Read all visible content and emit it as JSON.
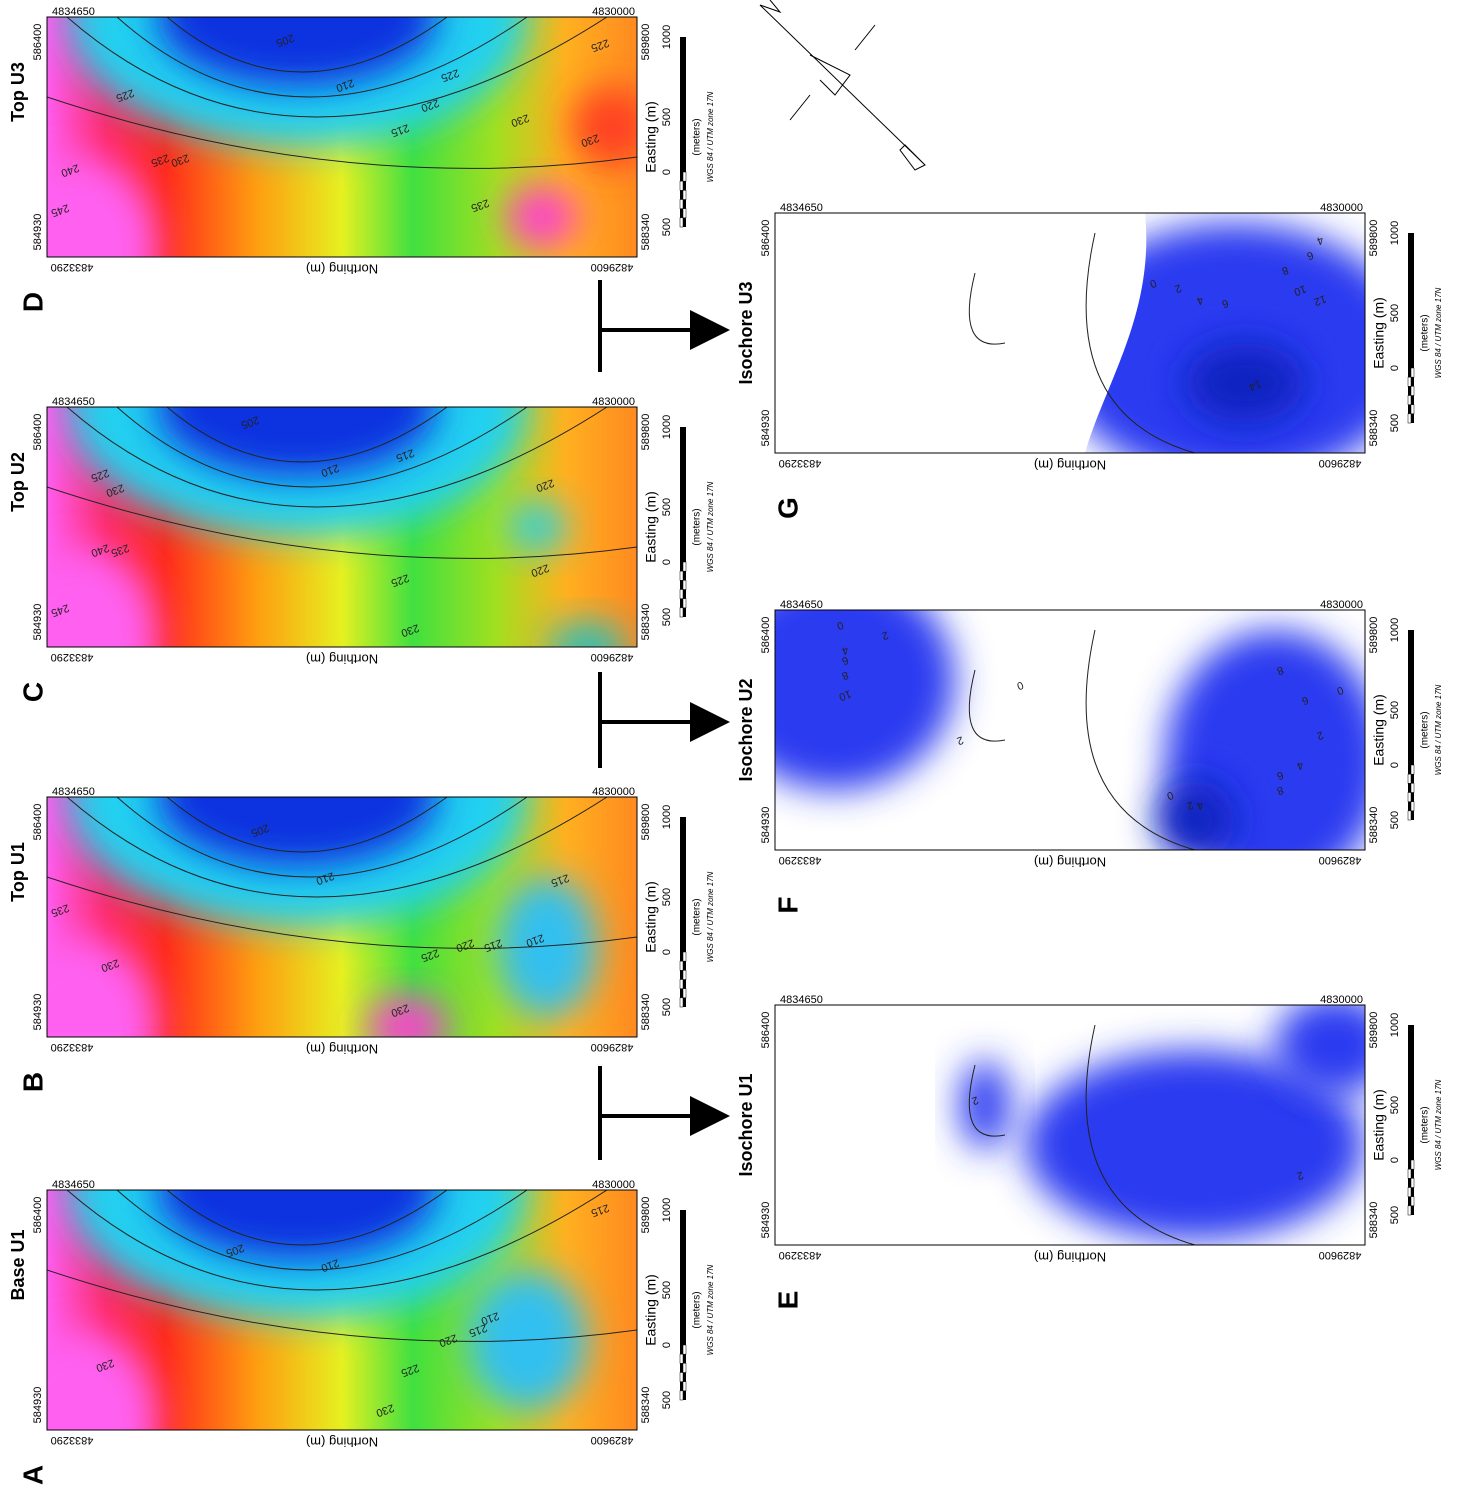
{
  "panels": [
    {
      "letter": "A",
      "title": "Base U1",
      "corner_labels": {
        "top_left": "4834650",
        "top_right": "4830000",
        "left_top": "586400",
        "left_bottom": "584930",
        "bottom_left": "4833290",
        "bottom_right": "4829600",
        "right_top": "589800",
        "right_bottom": "588340"
      },
      "axis_label_bottom": "Northing (m)",
      "scale": {
        "ticks": [
          "1000",
          "500",
          "0",
          "500"
        ],
        "unit": "(meters)",
        "axis_label": "Easting (m)",
        "projection": "WGS 84 / UTM zone 17N"
      },
      "contour_labels": [
        220,
        215,
        210,
        225,
        230,
        230,
        205,
        210,
        215
      ]
    },
    {
      "letter": "B",
      "title": "Top U1",
      "corner_labels": {
        "top_left": "4834650",
        "top_right": "4830000",
        "left_top": "586400",
        "left_bottom": "584930",
        "bottom_left": "4833290",
        "bottom_right": "4829600",
        "right_top": "589800",
        "right_bottom": "588340"
      },
      "axis_label_bottom": "Northing (m)",
      "scale": {
        "ticks": [
          "1000",
          "500",
          "0",
          "500"
        ],
        "unit": "(meters)",
        "axis_label": "Easting (m)",
        "projection": "WGS 84 / UTM zone 17N"
      },
      "contour_labels": [
        205,
        210,
        215,
        210,
        220,
        215,
        225,
        230,
        230,
        235
      ]
    },
    {
      "letter": "C",
      "title": "Top U2",
      "corner_labels": {
        "top_left": "4834650",
        "top_right": "4830000",
        "left_top": "586400",
        "left_bottom": "584930",
        "bottom_left": "4833290",
        "bottom_right": "4829600",
        "right_top": "589800",
        "right_bottom": "588340"
      },
      "axis_label_bottom": "Northing (m)",
      "scale": {
        "ticks": [
          "1000",
          "500",
          "0",
          "500"
        ],
        "unit": "(meters)",
        "axis_label": "Easting (m)",
        "projection": "WGS 84 / UTM zone 17N"
      },
      "contour_labels": [
        205,
        210,
        215,
        220,
        225,
        230,
        240,
        235,
        245,
        225,
        220,
        230
      ]
    },
    {
      "letter": "D",
      "title": "Top U3",
      "corner_labels": {
        "top_left": "4834650",
        "top_right": "4830000",
        "left_top": "586400",
        "left_bottom": "584930",
        "bottom_left": "4833290",
        "bottom_right": "4829600",
        "right_top": "589800",
        "right_bottom": "588340"
      },
      "axis_label_bottom": "Northing (m)",
      "scale": {
        "ticks": [
          "1000",
          "500",
          "0",
          "500"
        ],
        "unit": "(meters)",
        "axis_label": "Easting (m)",
        "projection": "WGS 84 / UTM zone 17N"
      },
      "contour_labels": [
        205,
        210,
        215,
        220,
        225,
        225,
        230,
        230,
        225,
        235,
        230,
        240,
        245,
        235
      ]
    },
    {
      "letter": "E",
      "title": "Isochore U1",
      "corner_labels": {
        "top_left": "4834650",
        "top_right": "4830000",
        "left_top": "586400",
        "left_bottom": "584930",
        "bottom_left": "4833290",
        "bottom_right": "4829600",
        "right_top": "589800",
        "right_bottom": "588340"
      },
      "axis_label_bottom": "Northing (m)",
      "scale": {
        "ticks": [
          "1000",
          "500",
          "0",
          "500"
        ],
        "unit": "(meters)",
        "axis_label": "Easting (m)",
        "projection": "WGS 84 / UTM zone 17N"
      },
      "contour_labels": [
        2,
        2
      ]
    },
    {
      "letter": "F",
      "title": "Isochore U2",
      "corner_labels": {
        "top_left": "4834650",
        "top_right": "4830000",
        "left_top": "586400",
        "left_bottom": "584930",
        "bottom_left": "4833290",
        "bottom_right": "4829600",
        "right_top": "589800",
        "right_bottom": "588340"
      },
      "axis_label_bottom": "Northing (m)",
      "scale": {
        "ticks": [
          "1000",
          "500",
          "0",
          "500"
        ],
        "unit": "(meters)",
        "axis_label": "Easting (m)",
        "projection": "WGS 84 / UTM zone 17N"
      },
      "contour_labels": [
        0,
        2,
        4,
        6,
        8,
        10,
        2,
        0,
        8,
        6,
        0,
        2,
        4,
        6,
        8,
        0,
        2,
        4
      ]
    },
    {
      "letter": "G",
      "title": "Isochore U3",
      "corner_labels": {
        "top_left": "4834650",
        "top_right": "4830000",
        "left_top": "586400",
        "left_bottom": "584930",
        "bottom_left": "4833290",
        "bottom_right": "4829600",
        "right_top": "589800",
        "right_bottom": "588340"
      },
      "axis_label_bottom": "Northing (m)",
      "scale": {
        "ticks": [
          "1000",
          "500",
          "0",
          "500"
        ],
        "unit": "(meters)",
        "axis_label": "Easting (m)",
        "projection": "WGS 84 / UTM zone 17N"
      },
      "contour_labels": [
        0,
        2,
        4,
        6,
        8,
        10,
        12,
        4,
        6,
        14
      ]
    }
  ]
}
